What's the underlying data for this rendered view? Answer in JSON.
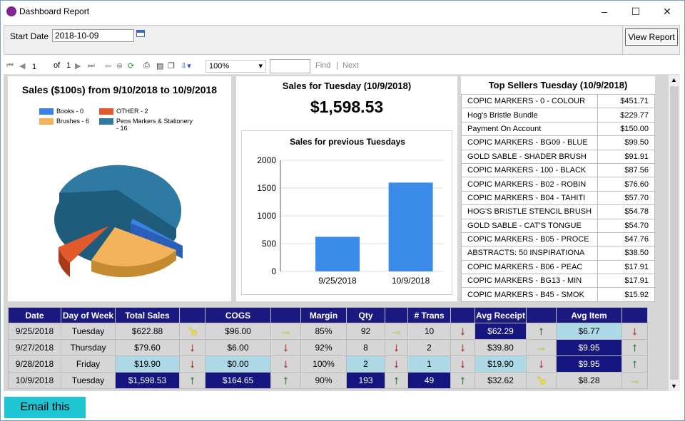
{
  "window": {
    "title": "Dashboard Report",
    "minimize": "–",
    "maximize": "☐",
    "close": "✕"
  },
  "params": {
    "start_date_label": "Start Date",
    "start_date_value": "2018-10-09",
    "view_report_label": "View Report"
  },
  "toolbar": {
    "page_value": "1",
    "of_label": "of",
    "page_count": "1",
    "zoom_value": "100%",
    "find_label": "Find",
    "next_label": "Next",
    "separator": "|"
  },
  "pie": {
    "title": "Sales ($100s) from 9/10/2018 to 10/9/2018",
    "legend": [
      {
        "label": "Books - 0",
        "color": "#3b82e6"
      },
      {
        "label": "OTHER - 2",
        "color": "#e05a2b"
      },
      {
        "label": "Brushes - 6",
        "color": "#f4b35a"
      },
      {
        "label": "Pens Markers & Stationery",
        "label2": "- 16",
        "color": "#2e7aa2"
      }
    ]
  },
  "sales": {
    "title": "Sales for Tuesday (10/9/2018)",
    "amount": "$1,598.53"
  },
  "chart_data": {
    "type": "bar",
    "title": "Sales for previous Tuesdays",
    "categories": [
      "9/25/2018",
      "10/9/2018"
    ],
    "values": [
      622.88,
      1598.53
    ],
    "ylim": [
      0,
      2000
    ],
    "yticks": [
      "0",
      "500",
      "1000",
      "1500",
      "2000"
    ],
    "color": "#3b8be8",
    "grid": true
  },
  "top_sellers": {
    "title": "Top Sellers Tuesday (10/9/2018)",
    "rows": [
      {
        "name": "COPIC MARKERS - 0 - COLOUR",
        "value": "$451.71"
      },
      {
        "name": "Hog's Bristle Bundle",
        "value": "$229.77"
      },
      {
        "name": "Payment On Account",
        "value": "$150.00"
      },
      {
        "name": "COPIC MARKERS - BG09 - BLUE",
        "value": "$99.50"
      },
      {
        "name": "GOLD SABLE - SHADER BRUSH",
        "value": "$91.91"
      },
      {
        "name": "COPIC MARKERS - 100 - BLACK",
        "value": "$87.56"
      },
      {
        "name": "COPIC MARKERS - B02 - ROBIN",
        "value": "$76.60"
      },
      {
        "name": "COPIC MARKERS - B04 - TAHITI",
        "value": "$57.70"
      },
      {
        "name": "HOG'S BRISTLE STENCIL BRUSH",
        "value": "$54.78"
      },
      {
        "name": "GOLD SABLE - CAT'S TONGUE",
        "value": "$54.70"
      },
      {
        "name": "COPIC MARKERS - B05 - PROCE",
        "value": "$47.76"
      },
      {
        "name": "ABSTRACTS: 50 INSPIRATIONA",
        "value": "$38.50"
      },
      {
        "name": "COPIC MARKERS - B06 - PEAC",
        "value": "$17.91"
      },
      {
        "name": "COPIC MARKERS - BG13 - MIN",
        "value": "$17.91"
      },
      {
        "name": "COPIC MARKERS - B45 - SMOK",
        "value": "$15.92"
      }
    ]
  },
  "summary": {
    "headers": [
      "Date",
      "Day of Week",
      "Total Sales",
      "",
      "COGS",
      "",
      "Margin",
      "Qty",
      "",
      "# Trans",
      "",
      "Avg Receipt",
      "",
      "Avg Item",
      ""
    ],
    "rows": [
      {
        "cells": [
          "9/25/2018",
          "Tuesday",
          "$622.88",
          "↘",
          "$96.00",
          "→",
          "85%",
          "92",
          "→",
          "10",
          "↓",
          "$62.29",
          "↑",
          "$6.77",
          "↓"
        ],
        "hl": [
          "",
          "",
          "",
          "",
          "",
          "",
          "",
          "",
          "",
          "",
          "",
          "blue",
          "",
          "lblue",
          ""
        ]
      },
      {
        "cells": [
          "9/27/2018",
          "Thursday",
          "$79.60",
          "↓",
          "$6.00",
          "↓",
          "92%",
          "8",
          "↓",
          "2",
          "↓",
          "$39.80",
          "→",
          "$9.95",
          "↑"
        ],
        "hl": [
          "",
          "",
          "",
          "",
          "",
          "",
          "",
          "",
          "",
          "",
          "",
          "",
          "",
          "blue",
          ""
        ]
      },
      {
        "cells": [
          "9/28/2018",
          "Friday",
          "$19.90",
          "↓",
          "$0.00",
          "↓",
          "100%",
          "2",
          "↓",
          "1",
          "↓",
          "$19.90",
          "↓",
          "$9.95",
          "↑"
        ],
        "hl": [
          "",
          "",
          "lblue",
          "",
          "lblue",
          "",
          "",
          "lblue",
          "",
          "lblue",
          "",
          "lblue",
          "",
          "blue",
          ""
        ]
      },
      {
        "cells": [
          "10/9/2018",
          "Tuesday",
          "$1,598.53",
          "↑",
          "$164.65",
          "↑",
          "90%",
          "193",
          "↑",
          "49",
          "↑",
          "$32.62",
          "↘",
          "$8.28",
          "→"
        ],
        "hl": [
          "",
          "",
          "blue",
          "",
          "blue",
          "",
          "",
          "blue",
          "",
          "blue",
          "",
          "",
          "",
          "",
          ""
        ]
      }
    ]
  },
  "email_label": "Email this"
}
